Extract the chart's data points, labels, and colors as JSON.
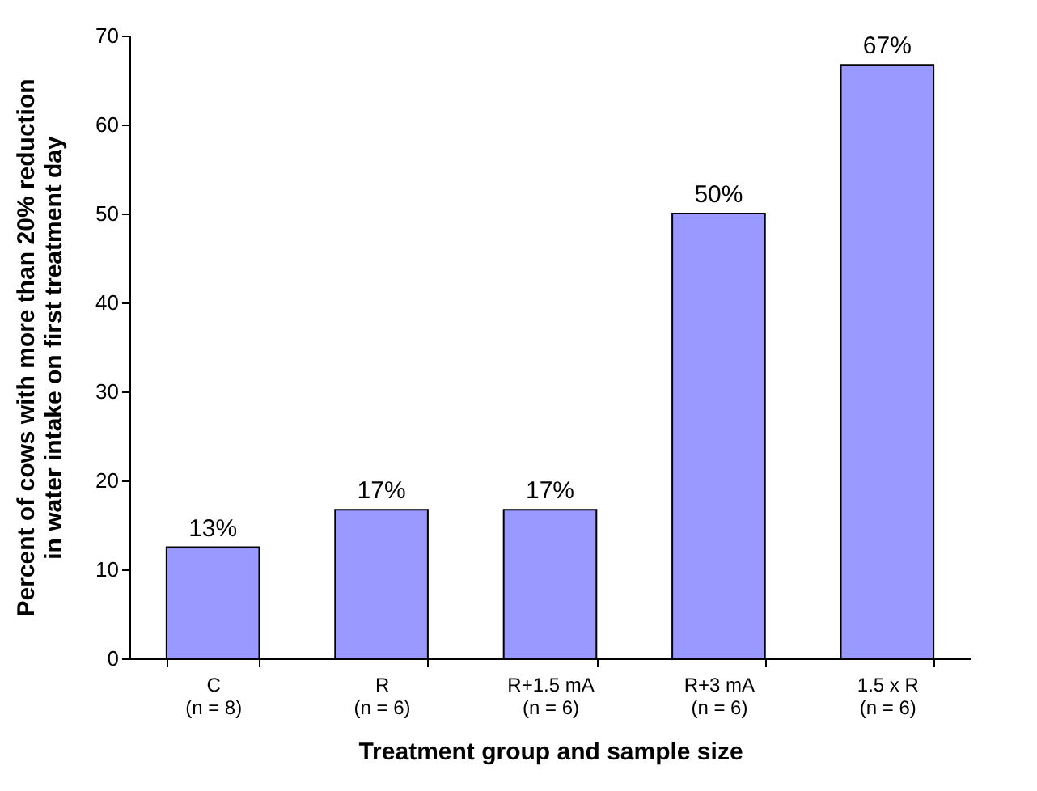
{
  "chart_data": {
    "type": "bar",
    "xlabel": "Treatment group and sample size",
    "ylabel": "Percent of cows with more than 20% reduction\nin water intake on first treatment day",
    "categories": [
      "C\n(n = 8)",
      "R\n(n = 6)",
      "R+1.5 mA\n(n = 6)",
      "R+3 mA\n(n = 6)",
      "1.5 x R\n(n = 6)"
    ],
    "values": [
      12.5,
      16.7,
      16.7,
      50,
      66.7
    ],
    "value_labels": [
      "13%",
      "17%",
      "17%",
      "50%",
      "67%"
    ],
    "color": "#9999ff",
    "ylim": [
      0,
      70
    ],
    "yticks": [
      0,
      10,
      20,
      30,
      40,
      50,
      60,
      70
    ],
    "grid": false
  }
}
